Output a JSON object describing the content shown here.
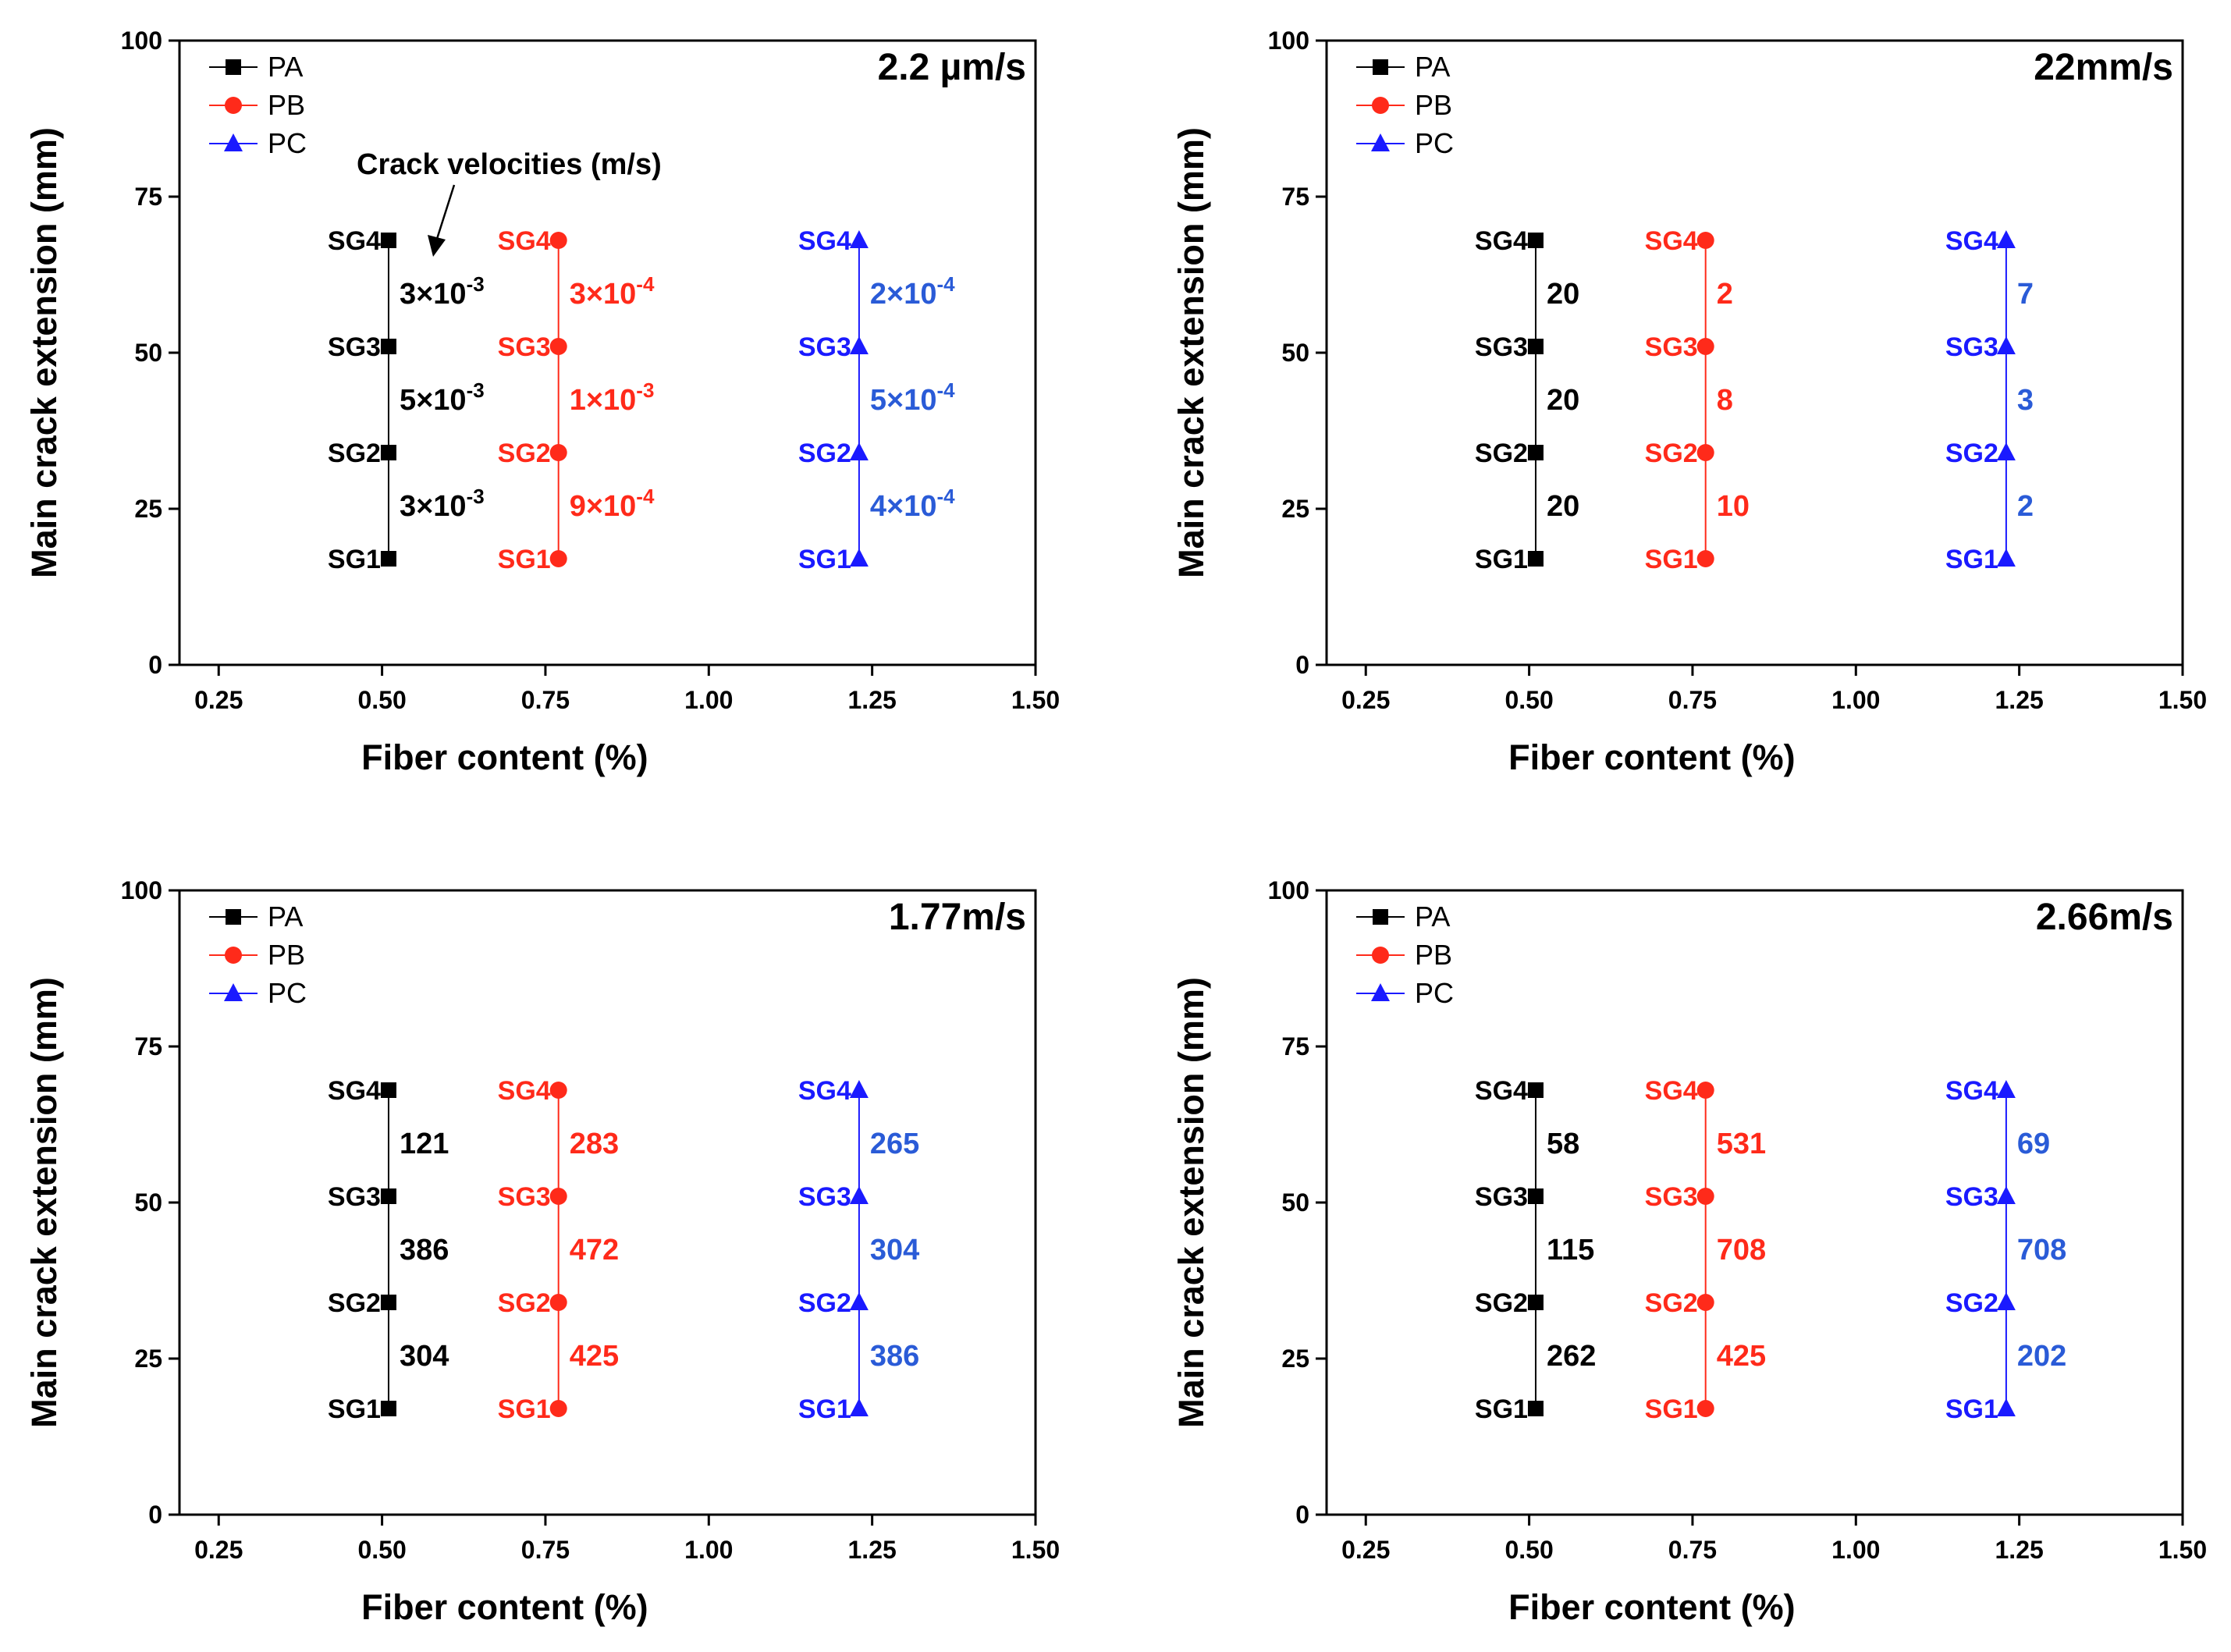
{
  "series_styles": [
    {
      "name": "PA",
      "color": "#000000",
      "label_color": "#000000",
      "vel_color": "#000000",
      "marker": "square"
    },
    {
      "name": "PB",
      "color": "#ff2a1a",
      "label_color": "#ff2a1a",
      "vel_color": "#ff2a1a",
      "marker": "circle"
    },
    {
      "name": "PC",
      "color": "#1a1aff",
      "label_color": "#1a1aff",
      "vel_color": "#2a5bd7",
      "marker": "triangle"
    }
  ],
  "chart_data": [
    {
      "type": "scatter",
      "title": "2.2 µm/s",
      "xlabel": "Fiber content (%)",
      "ylabel": "Main crack extension (mm)",
      "xlim": [
        0.19,
        1.5
      ],
      "ylim": [
        0,
        100
      ],
      "xticks": [
        "0.25",
        "0.50",
        "0.75",
        "1.00",
        "1.25",
        "1.50"
      ],
      "yticks": [
        "0",
        "25",
        "50",
        "75",
        "100"
      ],
      "legend": [
        "PA",
        "PB",
        "PC"
      ],
      "gauge_labels": [
        "SG1",
        "SG2",
        "SG3",
        "SG4"
      ],
      "annotation": "Crack velocities (m/s)",
      "series": [
        {
          "name": "PA",
          "x": 0.51,
          "y": [
            17,
            34,
            51,
            68
          ],
          "velocities": [
            {
              "m": "3×10",
              "e": "-3"
            },
            {
              "m": "5×10",
              "e": "-3"
            },
            {
              "m": "3×10",
              "e": "-3"
            }
          ]
        },
        {
          "name": "PB",
          "x": 0.77,
          "y": [
            17,
            34,
            51,
            68
          ],
          "velocities": [
            {
              "m": "9×10",
              "e": "-4"
            },
            {
              "m": "1×10",
              "e": "-3"
            },
            {
              "m": "3×10",
              "e": "-4"
            }
          ]
        },
        {
          "name": "PC",
          "x": 1.23,
          "y": [
            17,
            34,
            51,
            68
          ],
          "velocities": [
            {
              "m": "4×10",
              "e": "-4"
            },
            {
              "m": "5×10",
              "e": "-4"
            },
            {
              "m": "2×10",
              "e": "-4"
            }
          ]
        }
      ]
    },
    {
      "type": "scatter",
      "title": "22mm/s",
      "xlabel": "Fiber content (%)",
      "ylabel": "Main crack extension (mm)",
      "xlim": [
        0.19,
        1.5
      ],
      "ylim": [
        0,
        100
      ],
      "xticks": [
        "0.25",
        "0.50",
        "0.75",
        "1.00",
        "1.25",
        "1.50"
      ],
      "yticks": [
        "0",
        "25",
        "50",
        "75",
        "100"
      ],
      "legend": [
        "PA",
        "PB",
        "PC"
      ],
      "gauge_labels": [
        "SG1",
        "SG2",
        "SG3",
        "SG4"
      ],
      "series": [
        {
          "name": "PA",
          "x": 0.51,
          "y": [
            17,
            34,
            51,
            68
          ],
          "velocities": [
            {
              "m": "20"
            },
            {
              "m": "20"
            },
            {
              "m": "20"
            }
          ]
        },
        {
          "name": "PB",
          "x": 0.77,
          "y": [
            17,
            34,
            51,
            68
          ],
          "velocities": [
            {
              "m": "10"
            },
            {
              "m": "8"
            },
            {
              "m": "2"
            }
          ]
        },
        {
          "name": "PC",
          "x": 1.23,
          "y": [
            17,
            34,
            51,
            68
          ],
          "velocities": [
            {
              "m": "2"
            },
            {
              "m": "3"
            },
            {
              "m": "7"
            }
          ]
        }
      ]
    },
    {
      "type": "scatter",
      "title": "1.77m/s",
      "xlabel": "Fiber content (%)",
      "ylabel": "Main crack extension (mm)",
      "xlim": [
        0.19,
        1.5
      ],
      "ylim": [
        0,
        100
      ],
      "xticks": [
        "0.25",
        "0.50",
        "0.75",
        "1.00",
        "1.25",
        "1.50"
      ],
      "yticks": [
        "0",
        "25",
        "50",
        "75",
        "100"
      ],
      "legend": [
        "PA",
        "PB",
        "PC"
      ],
      "gauge_labels": [
        "SG1",
        "SG2",
        "SG3",
        "SG4"
      ],
      "series": [
        {
          "name": "PA",
          "x": 0.51,
          "y": [
            17,
            34,
            51,
            68
          ],
          "velocities": [
            {
              "m": "304"
            },
            {
              "m": "386"
            },
            {
              "m": "121"
            }
          ]
        },
        {
          "name": "PB",
          "x": 0.77,
          "y": [
            17,
            34,
            51,
            68
          ],
          "velocities": [
            {
              "m": "425"
            },
            {
              "m": "472"
            },
            {
              "m": "283"
            }
          ]
        },
        {
          "name": "PC",
          "x": 1.23,
          "y": [
            17,
            34,
            51,
            68
          ],
          "velocities": [
            {
              "m": "386"
            },
            {
              "m": "304"
            },
            {
              "m": "265"
            }
          ]
        }
      ]
    },
    {
      "type": "scatter",
      "title": "2.66m/s",
      "xlabel": "Fiber content (%)",
      "ylabel": "Main crack extension (mm)",
      "xlim": [
        0.19,
        1.5
      ],
      "ylim": [
        0,
        100
      ],
      "xticks": [
        "0.25",
        "0.50",
        "0.75",
        "1.00",
        "1.25",
        "1.50"
      ],
      "yticks": [
        "0",
        "25",
        "50",
        "75",
        "100"
      ],
      "legend": [
        "PA",
        "PB",
        "PC"
      ],
      "gauge_labels": [
        "SG1",
        "SG2",
        "SG3",
        "SG4"
      ],
      "series": [
        {
          "name": "PA",
          "x": 0.51,
          "y": [
            17,
            34,
            51,
            68
          ],
          "velocities": [
            {
              "m": "262"
            },
            {
              "m": "115"
            },
            {
              "m": "58"
            }
          ]
        },
        {
          "name": "PB",
          "x": 0.77,
          "y": [
            17,
            34,
            51,
            68
          ],
          "velocities": [
            {
              "m": "425"
            },
            {
              "m": "708"
            },
            {
              "m": "531"
            }
          ]
        },
        {
          "name": "PC",
          "x": 1.23,
          "y": [
            17,
            34,
            51,
            68
          ],
          "velocities": [
            {
              "m": "202"
            },
            {
              "m": "708"
            },
            {
              "m": "69"
            }
          ]
        }
      ]
    }
  ]
}
